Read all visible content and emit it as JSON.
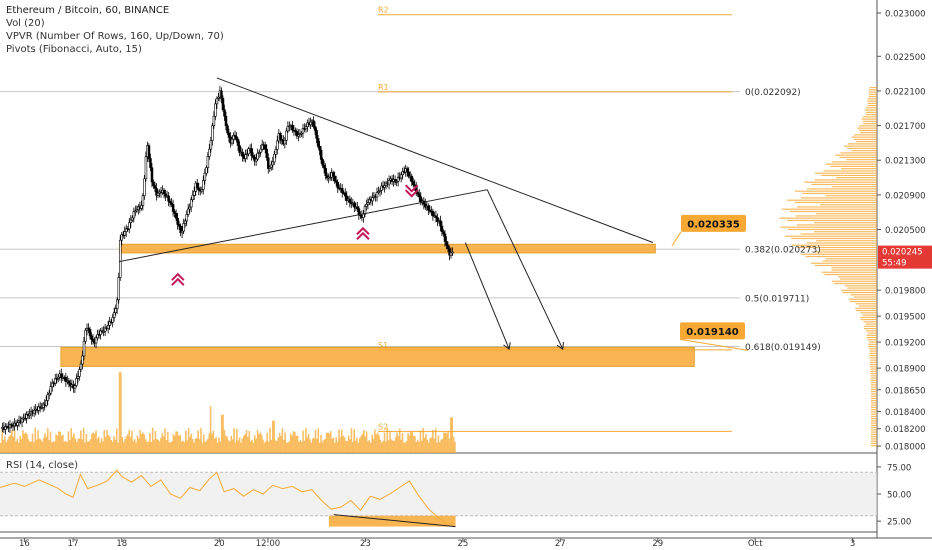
{
  "header": {
    "title": "Ethereum / Bitcoin, 60, BINANCE",
    "indicators": [
      "Vol (20)",
      "VPVR (Number Of Rows, 160, Up/Down, 70)",
      "Pivots (Fibonacci, Auto, 15)"
    ]
  },
  "rsi_label": "RSI (14, close)",
  "colors": {
    "accent": "#f7a934",
    "candle": "#000000",
    "volume": "#f7a934",
    "pivot_line": "#f7a934",
    "fib_line": "#c8c8c8",
    "pattern_marker": "#c2185b",
    "price_label_bg": "#f7a934",
    "last_price_label_bg": "#e53935",
    "profile": "#f7a934"
  },
  "chart_data": {
    "type": "candlestick",
    "symbol": "ETHBTC",
    "interval": "60",
    "ylim": [
      0.01792,
      0.02315
    ],
    "xlim": [
      "Sep 15 12:00",
      "Oct 3 12:00"
    ],
    "y_ticks": [
      "0.023000",
      "0.022500",
      "0.022100",
      "0.021700",
      "0.021300",
      "0.020900",
      "0.020500",
      "0.020245",
      "0.019800",
      "0.019500",
      "0.019200",
      "0.018900",
      "0.018650",
      "0.018400",
      "0.018200",
      "0.018000"
    ],
    "x_ticks": [
      {
        "label": "16",
        "t": 0.5
      },
      {
        "label": "17",
        "t": 1.5
      },
      {
        "label": "18",
        "t": 2.5
      },
      {
        "label": "20",
        "t": 4.5
      },
      {
        "label": "12:00",
        "t": 5.5
      },
      {
        "label": "23",
        "t": 7.5
      },
      {
        "label": "25",
        "t": 9.5
      },
      {
        "label": "27",
        "t": 11.5
      },
      {
        "label": "29",
        "t": 13.5
      },
      {
        "label": "Oct",
        "t": 15.5
      },
      {
        "label": "3",
        "t": 17.5
      }
    ],
    "last_price": "0.020245",
    "countdown": "55:49",
    "callouts": [
      {
        "text": "0.020335",
        "price": 0.020335
      },
      {
        "text": "0.019140",
        "price": 0.01914
      }
    ],
    "pivots": [
      {
        "label": "R2",
        "price": 0.02298
      },
      {
        "label": "R1",
        "price": 0.02209
      },
      {
        "label": "S1",
        "price": 0.01911
      },
      {
        "label": "S2",
        "price": 0.01817
      }
    ],
    "fib_levels": [
      {
        "text": "0(0.022092)",
        "price": 0.022092
      },
      {
        "text": "0.382(0.020273)",
        "price": 0.020273
      },
      {
        "text": "0.5(0.019711)",
        "price": 0.019711
      },
      {
        "text": "0.618(0.019149)",
        "price": 0.019149
      }
    ],
    "zones": [
      {
        "from": 0.02023,
        "to": 0.02033,
        "t0": 2.45,
        "t1": 13.45
      },
      {
        "from": 0.01892,
        "to": 0.01914,
        "t0": 1.25,
        "t1": 14.25
      }
    ],
    "trendlines": [
      {
        "t0": 2.45,
        "p0": 0.02013,
        "t1": 10.0,
        "p1": 0.02096
      },
      {
        "t0": 4.45,
        "p0": 0.02225,
        "t1": 13.4,
        "p1": 0.02035
      }
    ],
    "projections": [
      {
        "t0": 9.55,
        "p0": 0.02035,
        "t1": 10.45,
        "p1": 0.01912
      },
      {
        "t0": 10.0,
        "p0": 0.02096,
        "t1": 11.55,
        "p1": 0.01912
      }
    ],
    "markers": [
      {
        "type": "up",
        "t": 3.65,
        "price": 0.01995
      },
      {
        "type": "up",
        "t": 7.45,
        "price": 0.02048
      },
      {
        "type": "down",
        "t": 8.45,
        "price": 0.02092
      }
    ],
    "path": [
      [
        0.0,
        0.0182
      ],
      [
        0.3,
        0.01825
      ],
      [
        0.6,
        0.01838
      ],
      [
        0.9,
        0.01848
      ],
      [
        1.05,
        0.01872
      ],
      [
        1.2,
        0.01882
      ],
      [
        1.3,
        0.01878
      ],
      [
        1.4,
        0.01872
      ],
      [
        1.5,
        0.01867
      ],
      [
        1.65,
        0.01895
      ],
      [
        1.75,
        0.0194
      ],
      [
        1.85,
        0.01925
      ],
      [
        1.9,
        0.01918
      ],
      [
        2.0,
        0.0193
      ],
      [
        2.15,
        0.01935
      ],
      [
        2.3,
        0.01948
      ],
      [
        2.4,
        0.0197
      ],
      [
        2.45,
        0.0204
      ],
      [
        2.6,
        0.02052
      ],
      [
        2.75,
        0.02072
      ],
      [
        2.9,
        0.02078
      ],
      [
        3.0,
        0.0215
      ],
      [
        3.1,
        0.02106
      ],
      [
        3.2,
        0.0209
      ],
      [
        3.3,
        0.02095
      ],
      [
        3.4,
        0.02088
      ],
      [
        3.5,
        0.02078
      ],
      [
        3.6,
        0.02062
      ],
      [
        3.7,
        0.02045
      ],
      [
        3.8,
        0.02065
      ],
      [
        3.9,
        0.02082
      ],
      [
        4.0,
        0.02102
      ],
      [
        4.1,
        0.02092
      ],
      [
        4.2,
        0.02118
      ],
      [
        4.3,
        0.0215
      ],
      [
        4.4,
        0.02195
      ],
      [
        4.5,
        0.0221
      ],
      [
        4.6,
        0.02175
      ],
      [
        4.7,
        0.0215
      ],
      [
        4.8,
        0.0216
      ],
      [
        4.9,
        0.0214
      ],
      [
        5.0,
        0.02132
      ],
      [
        5.1,
        0.02145
      ],
      [
        5.2,
        0.02128
      ],
      [
        5.3,
        0.0214
      ],
      [
        5.4,
        0.0215
      ],
      [
        5.5,
        0.02118
      ],
      [
        5.6,
        0.02132
      ],
      [
        5.7,
        0.0216
      ],
      [
        5.8,
        0.02148
      ],
      [
        5.9,
        0.02172
      ],
      [
        6.0,
        0.02165
      ],
      [
        6.1,
        0.02158
      ],
      [
        6.2,
        0.02165
      ],
      [
        6.3,
        0.02172
      ],
      [
        6.4,
        0.02175
      ],
      [
        6.5,
        0.0215
      ],
      [
        6.6,
        0.02125
      ],
      [
        6.7,
        0.02108
      ],
      [
        6.8,
        0.02115
      ],
      [
        6.9,
        0.021
      ],
      [
        7.0,
        0.02095
      ],
      [
        7.1,
        0.02085
      ],
      [
        7.2,
        0.0208
      ],
      [
        7.3,
        0.02075
      ],
      [
        7.4,
        0.02062
      ],
      [
        7.5,
        0.0208
      ],
      [
        7.6,
        0.02085
      ],
      [
        7.7,
        0.0209
      ],
      [
        7.8,
        0.02098
      ],
      [
        7.9,
        0.02102
      ],
      [
        8.0,
        0.02108
      ],
      [
        8.1,
        0.02105
      ],
      [
        8.2,
        0.02112
      ],
      [
        8.3,
        0.0212
      ],
      [
        8.4,
        0.0211
      ],
      [
        8.5,
        0.02098
      ],
      [
        8.6,
        0.02085
      ],
      [
        8.7,
        0.02078
      ],
      [
        8.8,
        0.02072
      ],
      [
        8.9,
        0.02065
      ],
      [
        9.0,
        0.02058
      ],
      [
        9.1,
        0.0204
      ],
      [
        9.2,
        0.02022
      ],
      [
        9.3,
        0.02024
      ]
    ],
    "volume_spikes": [
      {
        "t": 2.45,
        "v": 0.95
      },
      {
        "t": 4.3,
        "v": 0.55
      },
      {
        "t": 4.55,
        "v": 0.45
      },
      {
        "t": 5.6,
        "v": 0.38
      },
      {
        "t": 9.25,
        "v": 0.42
      }
    ],
    "volume_ma_note": "",
    "rsi": {
      "ylim": [
        15,
        85
      ],
      "ticks": [
        "75.00",
        "50.00",
        "25.00"
      ],
      "band": [
        30,
        70
      ],
      "highlight": {
        "t0": 6.75,
        "t1": 9.35,
        "from": 20,
        "to": 30
      },
      "divergence_line": {
        "t0": 6.85,
        "p0": 31,
        "t1": 9.35,
        "p1": 20
      },
      "path": [
        [
          0.0,
          56
        ],
        [
          0.3,
          60
        ],
        [
          0.5,
          57
        ],
        [
          0.8,
          63
        ],
        [
          1.0,
          59
        ],
        [
          1.2,
          55
        ],
        [
          1.35,
          50
        ],
        [
          1.5,
          47
        ],
        [
          1.65,
          68
        ],
        [
          1.8,
          55
        ],
        [
          2.0,
          58
        ],
        [
          2.2,
          62
        ],
        [
          2.4,
          72
        ],
        [
          2.5,
          66
        ],
        [
          2.7,
          61
        ],
        [
          2.9,
          67
        ],
        [
          3.1,
          57
        ],
        [
          3.3,
          63
        ],
        [
          3.5,
          50
        ],
        [
          3.7,
          46
        ],
        [
          3.9,
          56
        ],
        [
          4.1,
          53
        ],
        [
          4.3,
          64
        ],
        [
          4.45,
          70
        ],
        [
          4.6,
          52
        ],
        [
          4.8,
          55
        ],
        [
          5.0,
          48
        ],
        [
          5.2,
          54
        ],
        [
          5.4,
          50
        ],
        [
          5.6,
          58
        ],
        [
          5.8,
          55
        ],
        [
          6.0,
          57
        ],
        [
          6.2,
          52
        ],
        [
          6.4,
          54
        ],
        [
          6.6,
          44
        ],
        [
          6.8,
          36
        ],
        [
          7.0,
          38
        ],
        [
          7.2,
          44
        ],
        [
          7.4,
          35
        ],
        [
          7.6,
          48
        ],
        [
          7.8,
          45
        ],
        [
          8.0,
          50
        ],
        [
          8.2,
          56
        ],
        [
          8.4,
          62
        ],
        [
          8.6,
          48
        ],
        [
          8.8,
          36
        ],
        [
          9.0,
          28
        ],
        [
          9.2,
          22
        ],
        [
          9.3,
          24
        ]
      ]
    }
  }
}
